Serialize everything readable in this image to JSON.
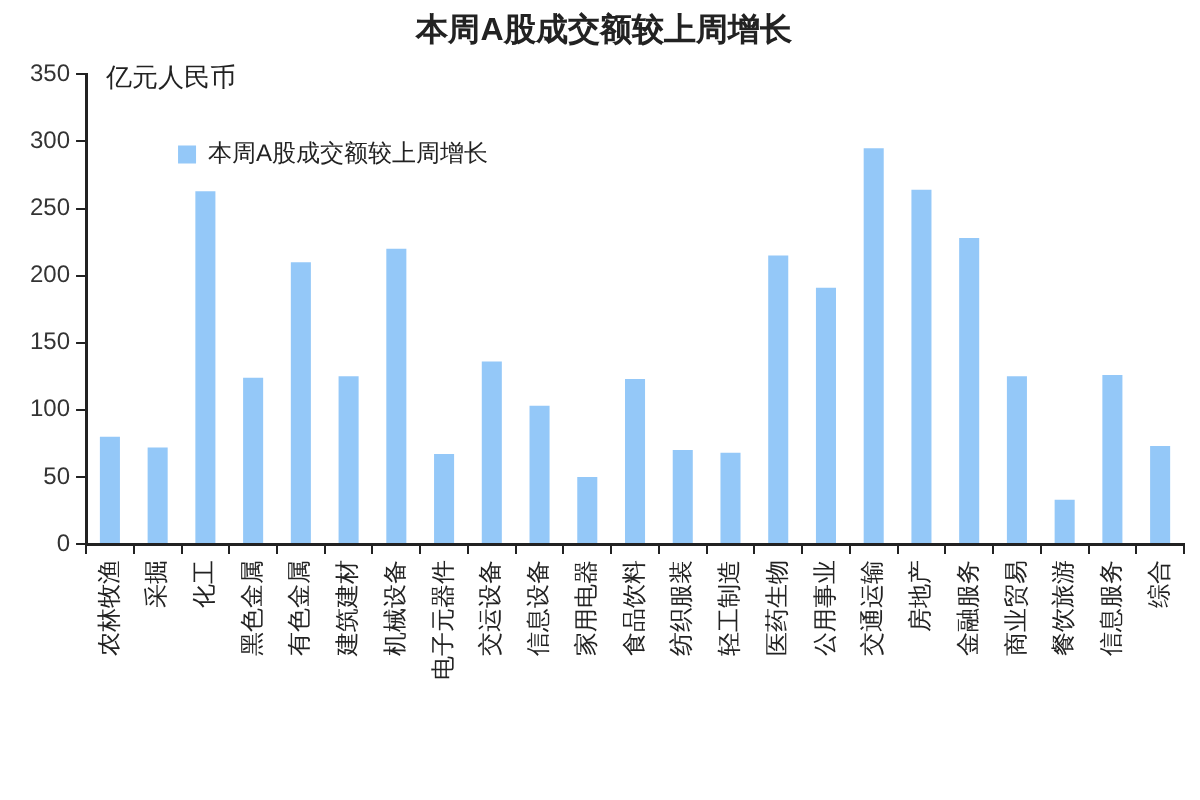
{
  "chart_data": {
    "type": "bar",
    "title": "本周A股成交额较上周增长",
    "ylabel": "亿元人民币",
    "categories": [
      "农林牧渔",
      "采掘",
      "化工",
      "黑色金属",
      "有色金属",
      "建筑建材",
      "机械设备",
      "电子元器件",
      "交运设备",
      "信息设备",
      "家用电器",
      "食品饮料",
      "纺织服装",
      "轻工制造",
      "医药生物",
      "公用事业",
      "交通运输",
      "房地产",
      "金融服务",
      "商业贸易",
      "餐饮旅游",
      "信息服务",
      "综合"
    ],
    "series": [
      {
        "name": "本周A股成交额较上周增长",
        "color": "#94c8f8",
        "values": [
          80,
          72,
          263,
          124,
          210,
          125,
          220,
          67,
          136,
          103,
          50,
          123,
          70,
          68,
          215,
          191,
          295,
          264,
          228,
          125,
          33,
          126,
          73
        ]
      }
    ],
    "ylim": [
      0,
      350
    ],
    "yticks": [
      0,
      50,
      100,
      150,
      200,
      250,
      300,
      350
    ],
    "grid": false,
    "legend": "top left"
  }
}
